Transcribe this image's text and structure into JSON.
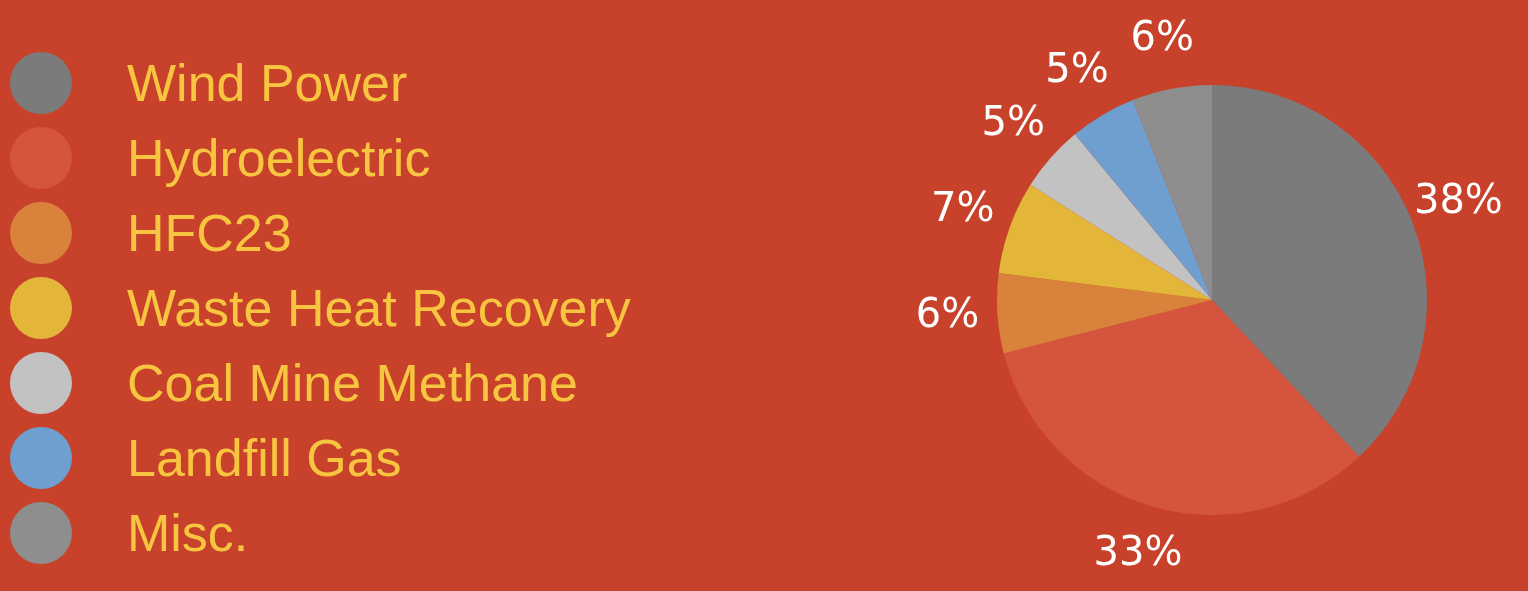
{
  "chart_data": {
    "type": "pie",
    "categories": [
      "Wind Power",
      "Hydroelectric",
      "HFC23",
      "Waste Heat Recovery",
      "Coal Mine Methane",
      "Landfill Gas",
      "Misc."
    ],
    "values": [
      38,
      33,
      6,
      7,
      5,
      5,
      6
    ],
    "value_labels": [
      "38%",
      "33%",
      "6%",
      "7%",
      "5%",
      "5%",
      "6%"
    ],
    "colors": [
      "#7b7b7b",
      "#d4543e",
      "#d9823c",
      "#e3b63a",
      "#c2c2c2",
      "#6f9fcf",
      "#8e8e8e"
    ],
    "legend": "left"
  }
}
